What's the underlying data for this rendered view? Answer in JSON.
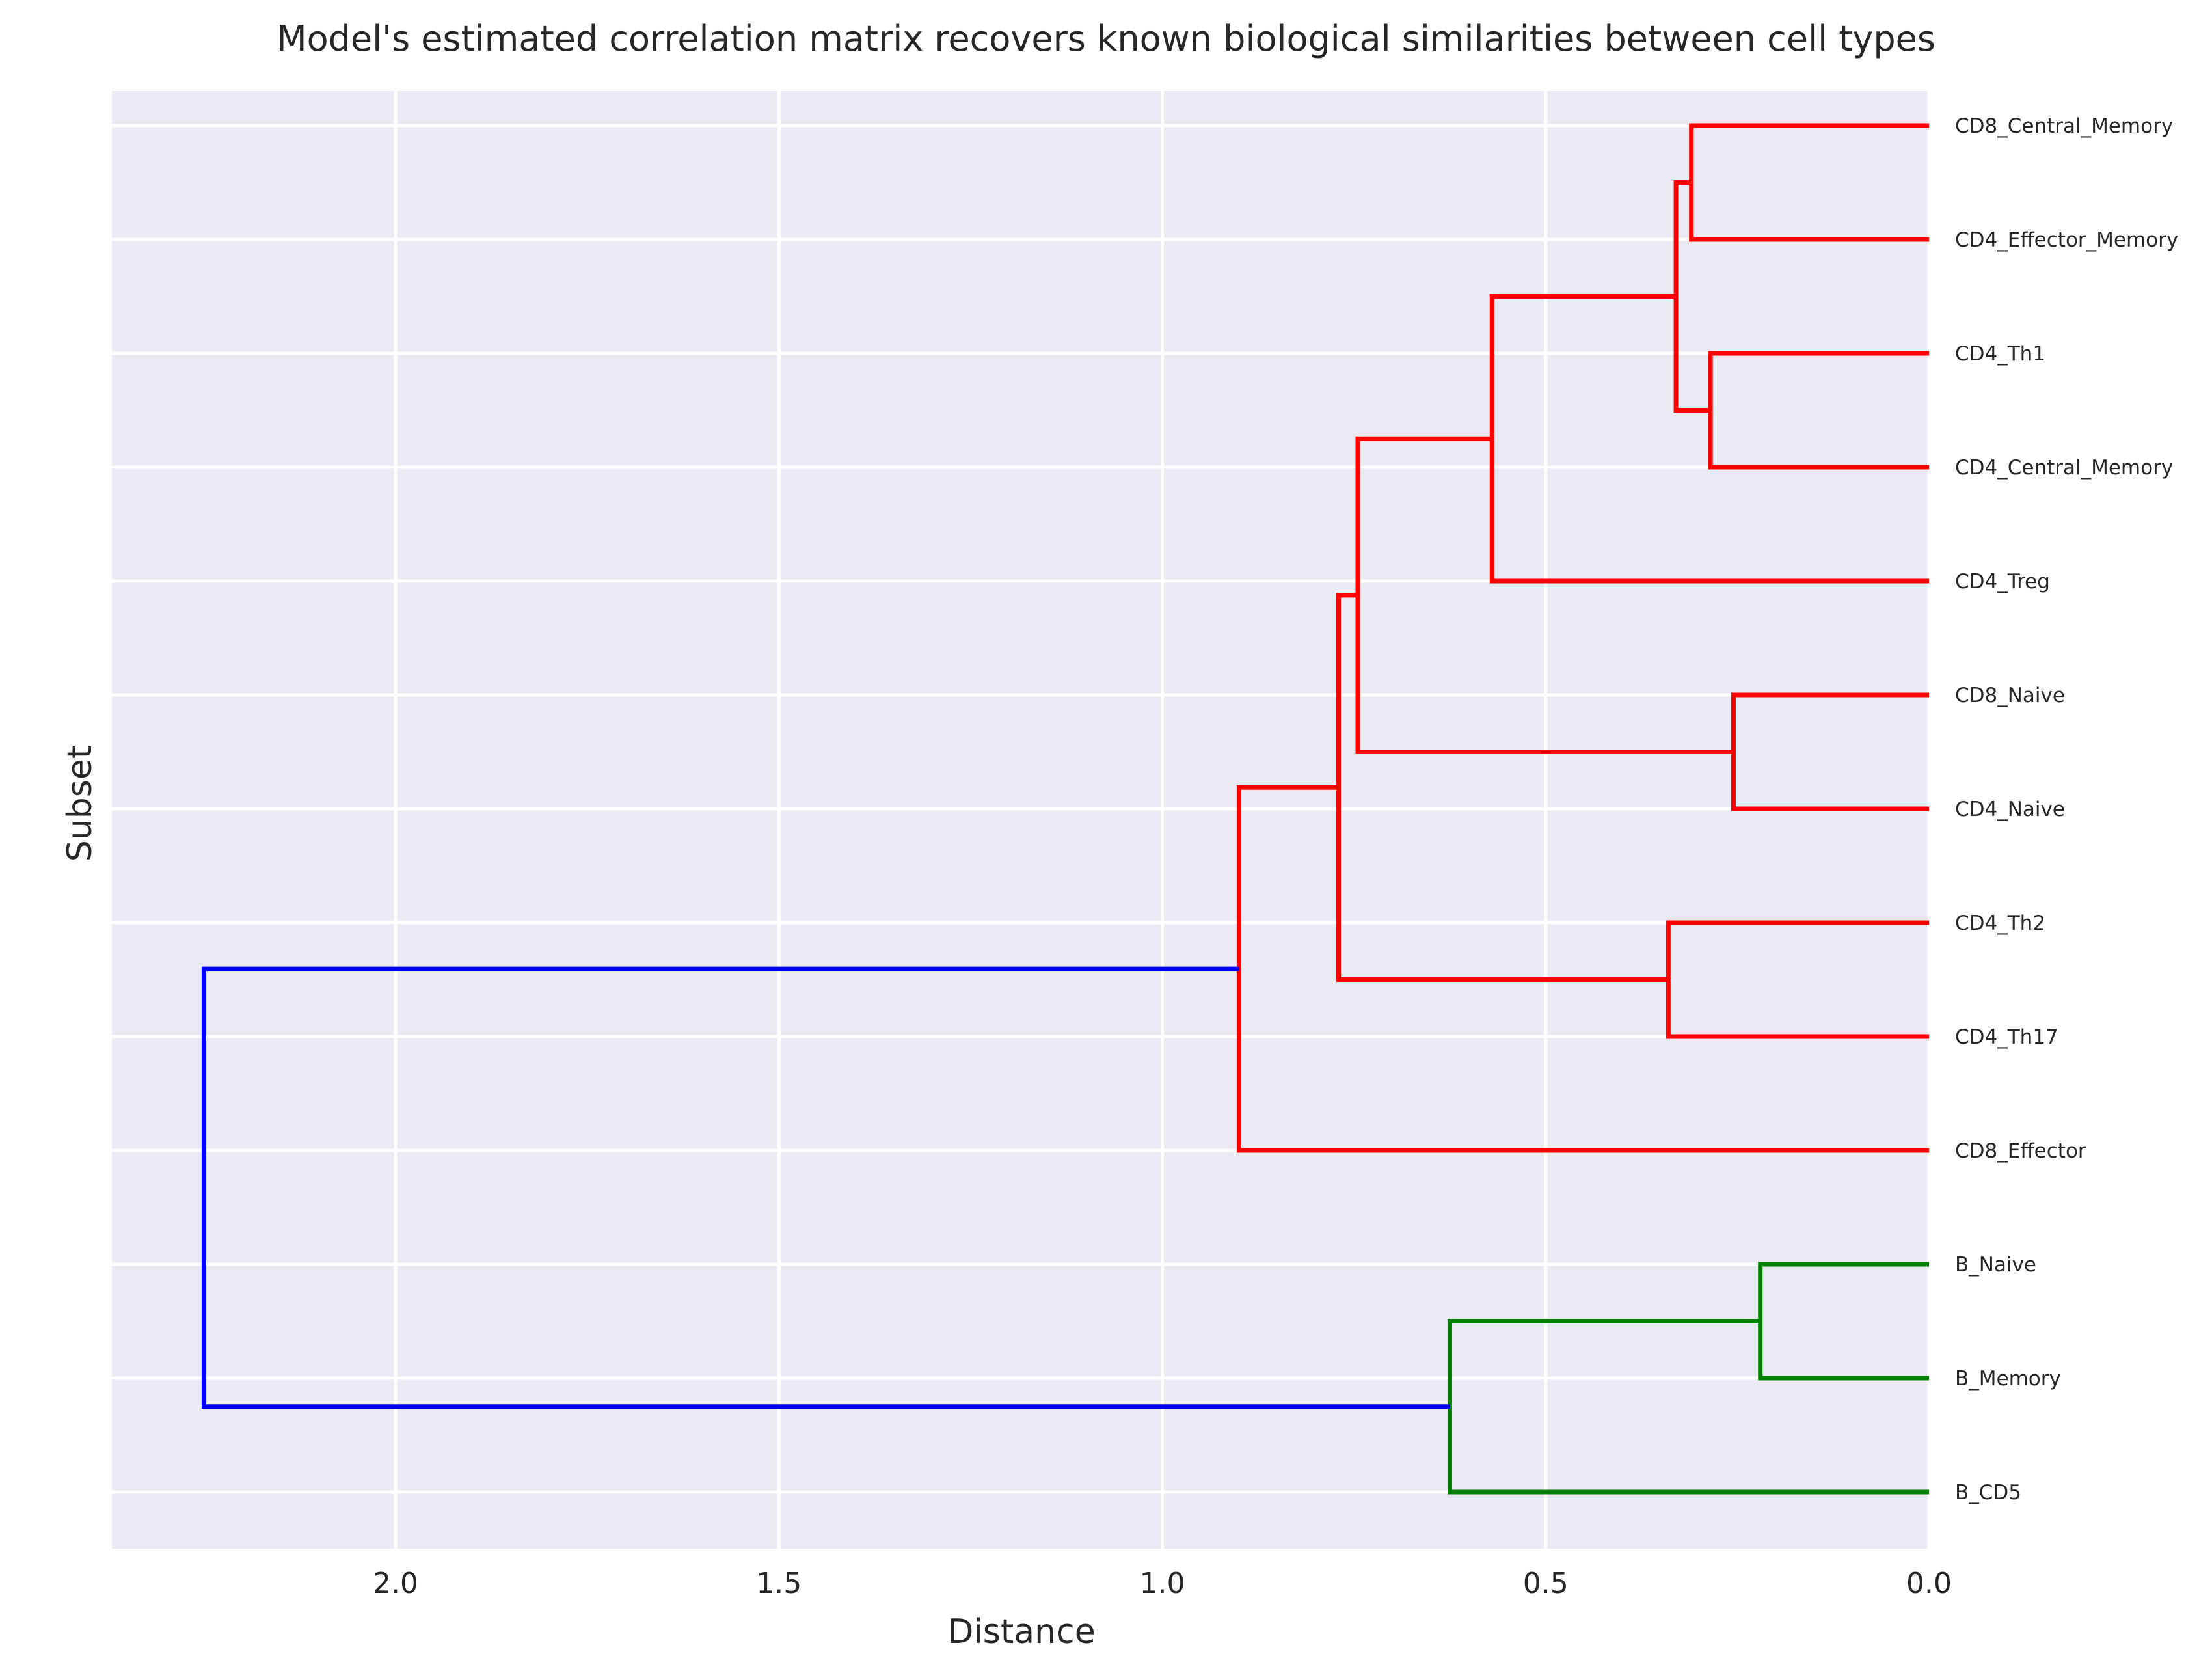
{
  "chart_data": {
    "type": "dendrogram",
    "title": "Model's estimated correlation matrix recovers known biological similarities between cell types",
    "xlabel": "Distance",
    "ylabel": "Subset",
    "xlim": [
      2.37,
      0.0
    ],
    "x_axis_inverted": true,
    "xticks": [
      2.0,
      1.5,
      1.0,
      0.5,
      0.0
    ],
    "xtick_labels": [
      "2.0",
      "1.5",
      "1.0",
      "0.5",
      "0.0"
    ],
    "grid": true,
    "background": "#EAEAF2",
    "leaves": [
      "CD8_Central_Memory",
      "CD4_Effector_Memory",
      "CD4_Th1",
      "CD4_Central_Memory",
      "CD4_Treg",
      "CD8_Naive",
      "CD4_Naive",
      "CD4_Th2",
      "CD4_Th17",
      "CD8_Effector",
      "B_Naive",
      "B_Memory",
      "B_CD5"
    ],
    "colors": {
      "t_cell_cluster": "#FF0000",
      "b_cell_cluster": "#008000",
      "root": "#0000FF"
    },
    "merges": [
      {
        "a": "CD8_Central_Memory",
        "b": "CD4_Effector_Memory",
        "distance": 0.31,
        "color": "#FF0000"
      },
      {
        "a": "CD4_Th1",
        "b": "CD4_Central_Memory",
        "distance": 0.285,
        "color": "#FF0000"
      },
      {
        "a": "m0",
        "b": "m1",
        "distance": 0.33,
        "color": "#FF0000"
      },
      {
        "a": "m2",
        "b": "CD4_Treg",
        "distance": 0.57,
        "color": "#FF0000"
      },
      {
        "a": "CD8_Naive",
        "b": "CD4_Naive",
        "distance": 0.255,
        "color": "#FF0000"
      },
      {
        "a": "m3",
        "b": "m4",
        "distance": 0.745,
        "color": "#FF0000"
      },
      {
        "a": "CD4_Th2",
        "b": "CD4_Th17",
        "distance": 0.34,
        "color": "#FF0000"
      },
      {
        "a": "m5",
        "b": "m6",
        "distance": 0.77,
        "color": "#FF0000"
      },
      {
        "a": "m7",
        "b": "CD8_Effector",
        "distance": 0.9,
        "color": "#FF0000"
      },
      {
        "a": "B_Naive",
        "b": "B_Memory",
        "distance": 0.22,
        "color": "#008000"
      },
      {
        "a": "m9",
        "b": "B_CD5",
        "distance": 0.625,
        "color": "#008000"
      },
      {
        "a": "m8",
        "b": "m10",
        "distance": 2.25,
        "color": "#0000FF"
      }
    ]
  }
}
